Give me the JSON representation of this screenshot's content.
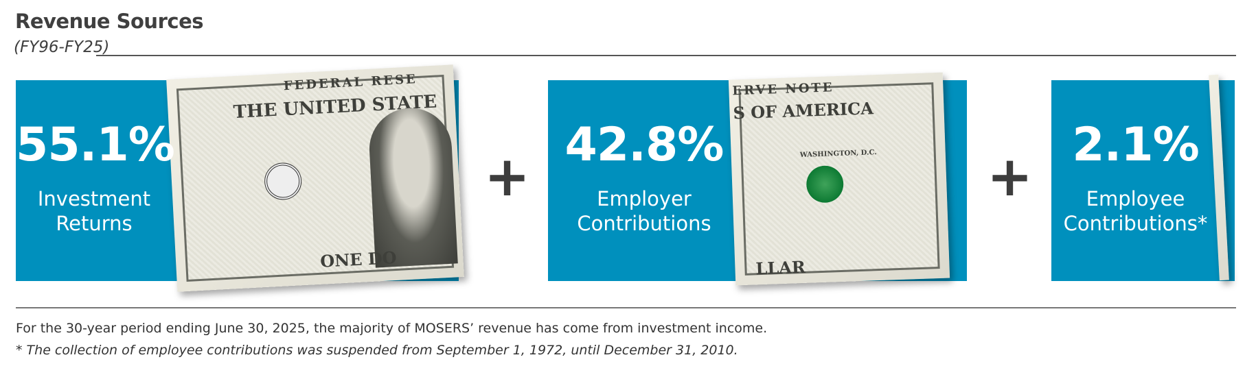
{
  "header": {
    "title": "Revenue Sources",
    "subtitle": "(FY96-FY25)"
  },
  "colors": {
    "box_blue": "#0090bd",
    "text_dark": "#3f3f3f"
  },
  "sources": [
    {
      "percent": "55.1%",
      "label_line1": "Investment",
      "label_line2": "Returns"
    },
    {
      "percent": "42.8%",
      "label_line1": "Employer",
      "label_line2": "Contributions"
    },
    {
      "percent": "2.1%",
      "label_line1": "Employee",
      "label_line2": "Contributions*"
    }
  ],
  "operator": "+",
  "bills": {
    "bill1_top": "FEDERAL RESE",
    "bill1_line": "THE UNITED STATE",
    "bill1_bottom": "ONE DO",
    "bill2_top": "ERVE NOTE",
    "bill2_line": "S OF AMERICA",
    "bill2_city": "WASHINGTON, D.C.",
    "bill2_bottom": "LLAR"
  },
  "footer": {
    "note": "For the 30-year period ending June 30, 2025, the majority of MOSERS’ revenue has come from investment income.",
    "footnote": "* The collection of employee contributions was suspended from September 1, 1972, until December 31, 2010."
  }
}
